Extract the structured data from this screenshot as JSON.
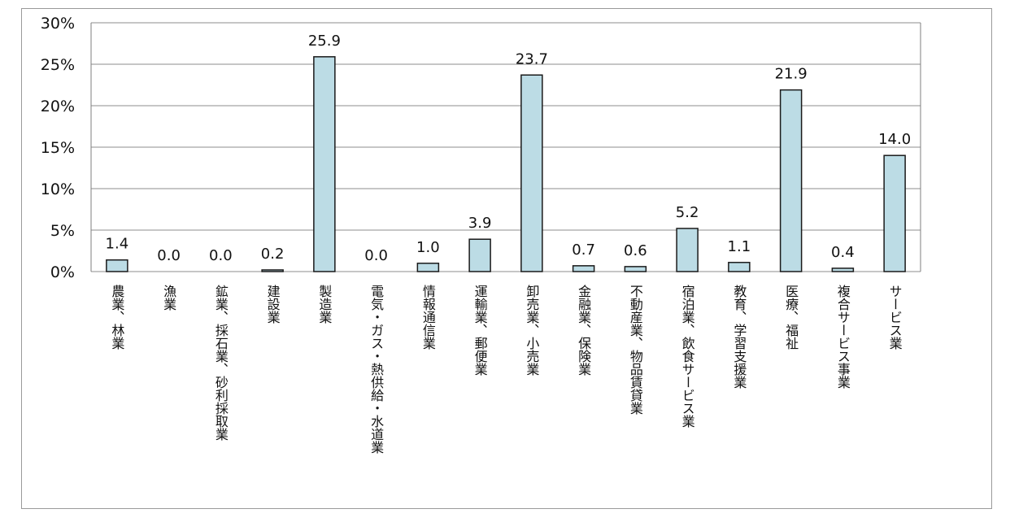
{
  "chart_data": {
    "type": "bar",
    "categories": [
      "農業、林業",
      "漁業",
      "鉱業、採石業、砂利採取業",
      "建設業",
      "製造業",
      "電気・ガス・熱供給・水道業",
      "情報通信業",
      "運輸業、郵便業",
      "卸売業、小売業",
      "金融業、保険業",
      "不動産業、物品賃貸業",
      "宿泊業、飲食サービス業",
      "教育、学習支援業",
      "医療、福祉",
      "複合サービス事業",
      "サービス業"
    ],
    "values": [
      1.4,
      0.0,
      0.0,
      0.2,
      25.9,
      0.0,
      1.0,
      3.9,
      23.7,
      0.7,
      0.6,
      5.2,
      1.1,
      21.9,
      0.4,
      14.0
    ],
    "value_labels": [
      "1.4",
      "0.0",
      "0.0",
      "0.2",
      "25.9",
      "0.0",
      "1.0",
      "3.9",
      "23.7",
      "0.7",
      "0.6",
      "5.2",
      "1.1",
      "21.9",
      "0.4",
      "14.0"
    ],
    "ylim": [
      0,
      30
    ],
    "yticks": [
      0,
      5,
      10,
      15,
      20,
      25,
      30
    ],
    "ytick_labels": [
      "0%",
      "5%",
      "10%",
      "15%",
      "20%",
      "25%",
      "30%"
    ],
    "grid": true,
    "legend": "none",
    "title": "",
    "xlabel": "",
    "ylabel": "",
    "colors": {
      "bar_fill": "#bcdce5",
      "bar_stroke": "#1a1a1a",
      "grid": "#8c8c8c",
      "axis": "#7f7f7f",
      "text": "#111111"
    }
  }
}
